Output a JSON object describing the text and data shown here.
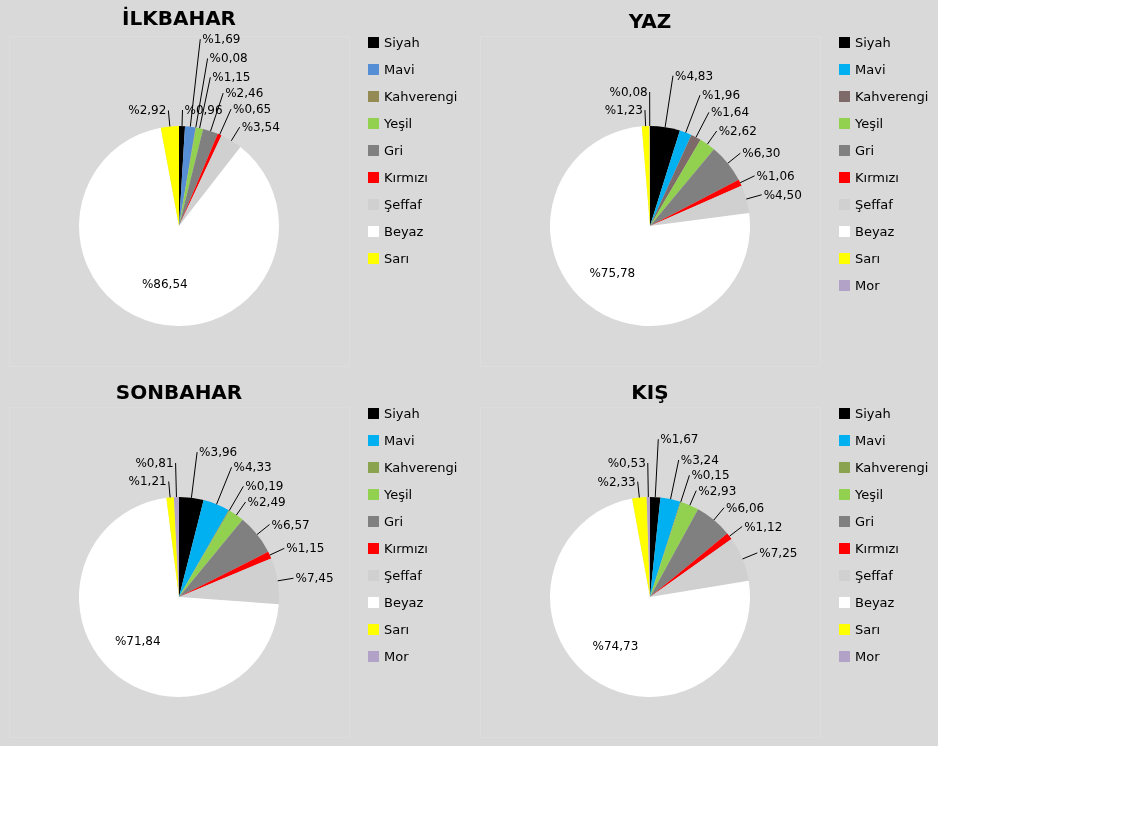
{
  "chart_data": [
    {
      "type": "pie",
      "title": "İLKBAHAR",
      "legend": "right",
      "categories": [
        "Siyah",
        "Mavi",
        "Kahverengi",
        "Yeşil",
        "Gri",
        "Kırmızı",
        "Şeffaf",
        "Beyaz",
        "Sarı"
      ],
      "values": [
        0.96,
        1.69,
        0.08,
        1.15,
        2.46,
        0.65,
        3.54,
        86.54,
        2.92
      ],
      "value_labels": [
        "%0,96",
        "%1,69",
        "%0,08",
        "%1,15",
        "%2,46",
        "%0,65",
        "%3,54",
        "%86,54",
        "%2,92"
      ],
      "colors": [
        "#000000",
        "#558ed5",
        "#948a54",
        "#92d050",
        "#808080",
        "#ff0000",
        "#d0d0d0",
        "#ffffff",
        "#ffff00"
      ]
    },
    {
      "type": "pie",
      "title": "YAZ",
      "legend": "right",
      "categories": [
        "Siyah",
        "Mavi",
        "Kahverengi",
        "Yeşil",
        "Gri",
        "Kırmızı",
        "Şeffaf",
        "Beyaz",
        "Sarı",
        "Mor"
      ],
      "values": [
        4.83,
        1.96,
        1.64,
        2.62,
        6.3,
        1.06,
        4.5,
        75.78,
        1.23,
        0.08
      ],
      "value_labels": [
        "%4,83",
        "%1,96",
        "%1,64",
        "%2,62",
        "%6,30",
        "%1,06",
        "%4,50",
        "%75,78",
        "%1,23",
        "%0,08"
      ],
      "colors": [
        "#000000",
        "#00b0f0",
        "#7f6a6a",
        "#92d050",
        "#808080",
        "#ff0000",
        "#d0d0d0",
        "#ffffff",
        "#ffff00",
        "#b3a2c7"
      ]
    },
    {
      "type": "pie",
      "title": "SONBAHAR",
      "legend": "right",
      "categories": [
        "Siyah",
        "Mavi",
        "Kahverengi",
        "Yeşil",
        "Gri",
        "Kırmızı",
        "Şeffaf",
        "Beyaz",
        "Sarı",
        "Mor"
      ],
      "values": [
        3.96,
        4.33,
        0.19,
        2.49,
        6.57,
        1.15,
        7.45,
        71.84,
        1.21,
        0.81
      ],
      "value_labels": [
        "%3,96",
        "%4,33",
        "%0,19",
        "%2,49",
        "%6,57",
        "%1,15",
        "%7,45",
        "%71,84",
        "%1,21",
        "%0,81"
      ],
      "colors": [
        "#000000",
        "#00b0f0",
        "#8aa34f",
        "#92d050",
        "#808080",
        "#ff0000",
        "#d0d0d0",
        "#ffffff",
        "#ffff00",
        "#b3a2c7"
      ]
    },
    {
      "type": "pie",
      "title": "KIŞ",
      "legend": "right",
      "categories": [
        "Siyah",
        "Mavi",
        "Kahverengi",
        "Yeşil",
        "Gri",
        "Kırmızı",
        "Şeffaf",
        "Beyaz",
        "Sarı",
        "Mor"
      ],
      "values": [
        1.67,
        3.24,
        0.15,
        2.93,
        6.06,
        1.12,
        7.25,
        74.73,
        2.33,
        0.53
      ],
      "value_labels": [
        "%1,67",
        "%3,24",
        "%0,15",
        "%2,93",
        "%6,06",
        "%1,12",
        "%7,25",
        "%74,73",
        "%2,33",
        "%0,53"
      ],
      "colors": [
        "#000000",
        "#00b0f0",
        "#8aa34f",
        "#92d050",
        "#808080",
        "#ff0000",
        "#d0d0d0",
        "#ffffff",
        "#ffff00",
        "#b3a2c7"
      ]
    }
  ]
}
